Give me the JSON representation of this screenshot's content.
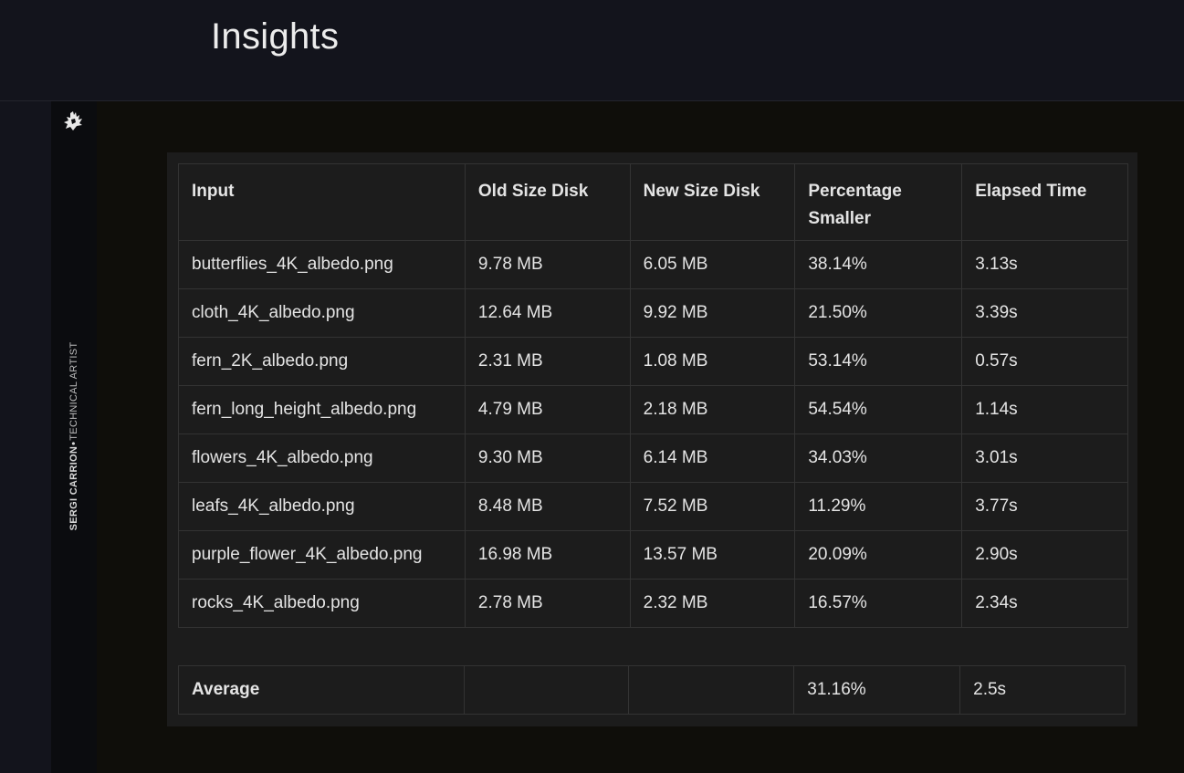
{
  "header": {
    "title": "Insights"
  },
  "sidebar": {
    "logo_icon": "hand-logo-icon",
    "author_name": "SERGI CARRION",
    "separator": "•",
    "author_role": "TECHNICAL ARTIST"
  },
  "table": {
    "columns": [
      "Input",
      "Old Size Disk",
      "New Size Disk",
      "Percentage Smaller",
      "Elapsed Time"
    ],
    "rows": [
      [
        "butterflies_4K_albedo.png",
        "9.78 MB",
        "6.05 MB",
        "38.14%",
        "3.13s"
      ],
      [
        "cloth_4K_albedo.png",
        "12.64 MB",
        "9.92 MB",
        "21.50%",
        "3.39s"
      ],
      [
        "fern_2K_albedo.png",
        "2.31 MB",
        "1.08 MB",
        "53.14%",
        "0.57s"
      ],
      [
        "fern_long_height_albedo.png",
        "4.79 MB",
        "2.18 MB",
        "54.54%",
        "1.14s"
      ],
      [
        "flowers_4K_albedo.png",
        "9.30 MB",
        "6.14 MB",
        "34.03%",
        "3.01s"
      ],
      [
        "leafs_4K_albedo.png",
        "8.48 MB",
        "7.52 MB",
        "11.29%",
        "3.77s"
      ],
      [
        "purple_flower_4K_albedo.png",
        "16.98 MB",
        "13.57 MB",
        "20.09%",
        "2.90s"
      ],
      [
        "rocks_4K_albedo.png",
        "2.78 MB",
        "2.32 MB",
        "16.57%",
        "2.34s"
      ]
    ]
  },
  "average": {
    "label": "Average",
    "old_size": "",
    "new_size": "",
    "percentage": "31.16%",
    "elapsed": "2.5s"
  },
  "colors": {
    "header_bg": "#13141c",
    "content_bg": "#0f0e0a",
    "sidebar_bg": "#0b0c0f",
    "table_bg": "#1c1c1c",
    "table_border": "#333333",
    "text": "#e4e4e4"
  }
}
